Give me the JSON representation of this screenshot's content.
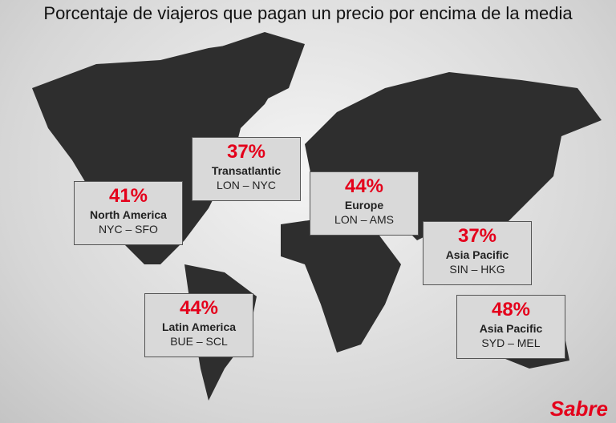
{
  "title": "Porcentaje de viajeros que pagan un precio por encima de la media",
  "callouts": [
    {
      "percent": "41%",
      "region": "North America",
      "route": "NYC – SFO"
    },
    {
      "percent": "37%",
      "region": "Transatlantic",
      "route": "LON – NYC"
    },
    {
      "percent": "44%",
      "region": "Europe",
      "route": "LON – AMS"
    },
    {
      "percent": "37%",
      "region": "Asia Pacific",
      "route": "SIN – HKG"
    },
    {
      "percent": "44%",
      "region": "Latin America",
      "route": "BUE – SCL"
    },
    {
      "percent": "48%",
      "region": "Asia Pacific",
      "route": "SYD – MEL"
    }
  ],
  "logo": "Sabre"
}
